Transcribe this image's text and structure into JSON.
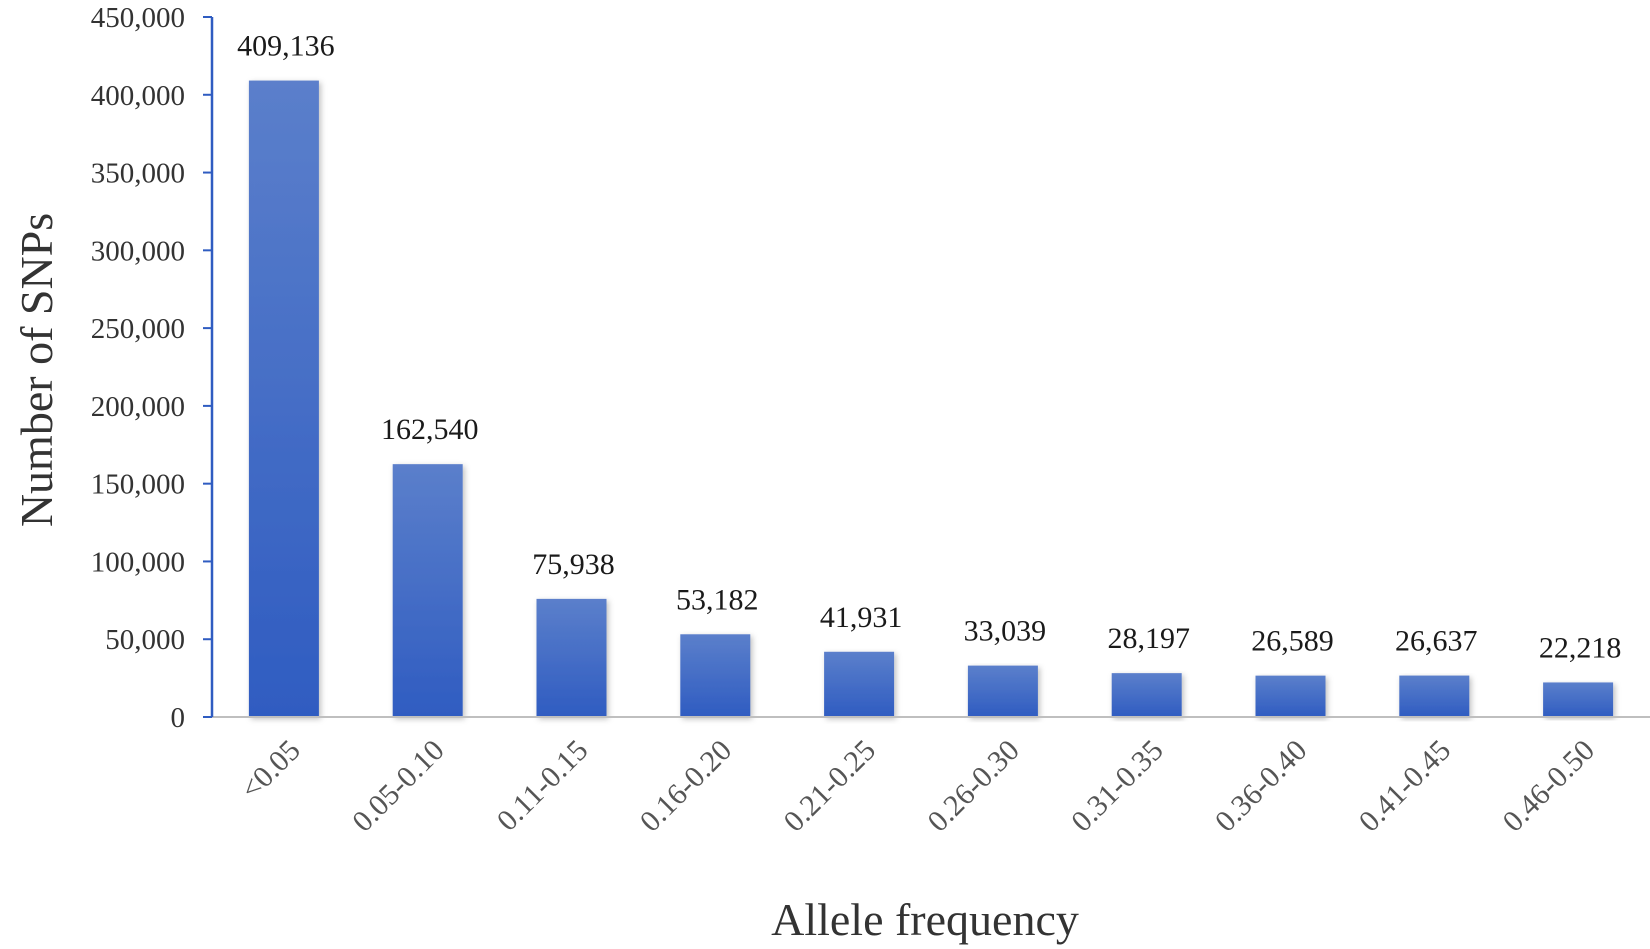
{
  "chart_data": {
    "type": "bar",
    "title": "",
    "xlabel": "Allele frequency",
    "ylabel": "Number of SNPs",
    "categories": [
      "<0.05",
      "0.05-0.10",
      "0.11-0.15",
      "0.16-0.20",
      "0.21-0.25",
      "0.26-0.30",
      "0.31-0.35",
      "0.36-0.40",
      "0.41-0.45",
      "0.46-0.50"
    ],
    "values": [
      409136,
      162540,
      75938,
      53182,
      41931,
      33039,
      28197,
      26589,
      26637,
      22218
    ],
    "value_labels": [
      "409,136",
      "162,540",
      "75,938",
      "53,182",
      "41,931",
      "33,039",
      "28,197",
      "26,589",
      "26,637",
      "22,218"
    ],
    "ylim": [
      0,
      450000
    ],
    "yticks": [
      0,
      50000,
      100000,
      150000,
      200000,
      250000,
      300000,
      350000,
      400000,
      450000
    ],
    "ytick_labels": [
      "0",
      "50,000",
      "100,000",
      "150,000",
      "200,000",
      "250,000",
      "300,000",
      "350,000",
      "400,000",
      "450,000"
    ],
    "grid": false,
    "legend": "none",
    "colors": {
      "bar_top": "#5b7fcb",
      "bar_bottom": "#2f5cc1",
      "y_axis": "#2f5cc1",
      "x_axis": "#bfbfbf"
    }
  }
}
